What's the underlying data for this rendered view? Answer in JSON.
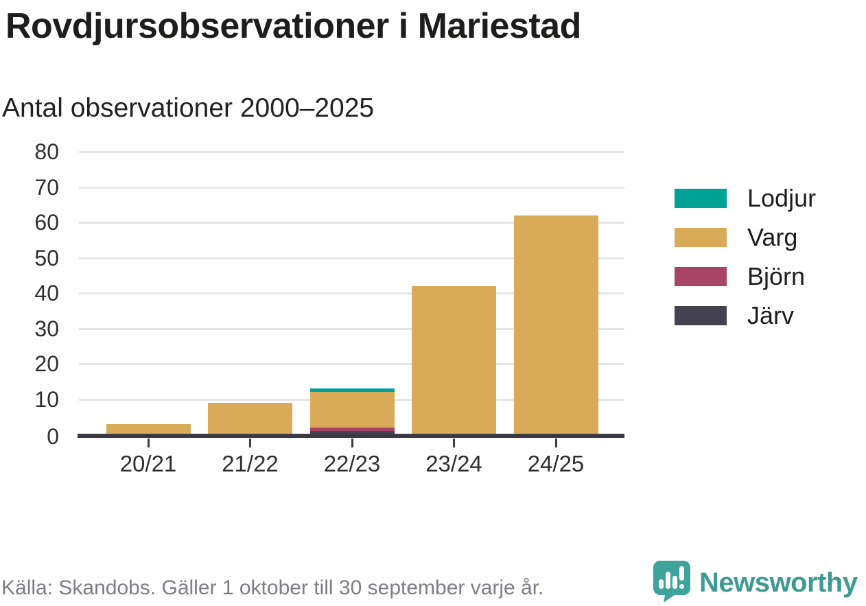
{
  "header": {
    "title": "Rovdjursobservationer i Mariestad",
    "subtitle": "Antal observationer 2000–2025"
  },
  "chart_data": {
    "type": "bar",
    "stacked": true,
    "title": "Rovdjursobservationer i Mariestad",
    "subtitle": "Antal observationer 2000–2025",
    "categories": [
      "20/21",
      "21/22",
      "22/23",
      "23/24",
      "24/25"
    ],
    "series": [
      {
        "name": "Lodjur",
        "color": "#00a296",
        "values": [
          0,
          0,
          1,
          0,
          0
        ]
      },
      {
        "name": "Varg",
        "color": "#d9ab58",
        "values": [
          3,
          9,
          10,
          42,
          62
        ]
      },
      {
        "name": "Björn",
        "color": "#a84566",
        "values": [
          0,
          0,
          1,
          0,
          0
        ]
      },
      {
        "name": "Järv",
        "color": "#454250",
        "values": [
          0,
          0,
          1,
          0,
          0
        ]
      }
    ],
    "stack_order_bottom_to_top": [
      "Järv",
      "Björn",
      "Varg",
      "Lodjur"
    ],
    "totals": [
      3,
      9,
      13,
      42,
      62
    ],
    "xlabel": "",
    "ylabel": "",
    "y_ticks": [
      0,
      10,
      20,
      30,
      40,
      50,
      60,
      70,
      80
    ],
    "ylim": [
      0,
      80
    ],
    "grid": true,
    "legend_position": "right",
    "axis_color": "#3a3a42",
    "gridline_color": "#e5e5e5"
  },
  "footer": {
    "source": "Källa: Skandobs. Gäller 1 oktober till 30 september varje år.",
    "brand": "Newsworthy",
    "brand_color": "#3d9b94",
    "logo_icon": "newsworthy-speech-bubble-bar-chart-icon"
  }
}
